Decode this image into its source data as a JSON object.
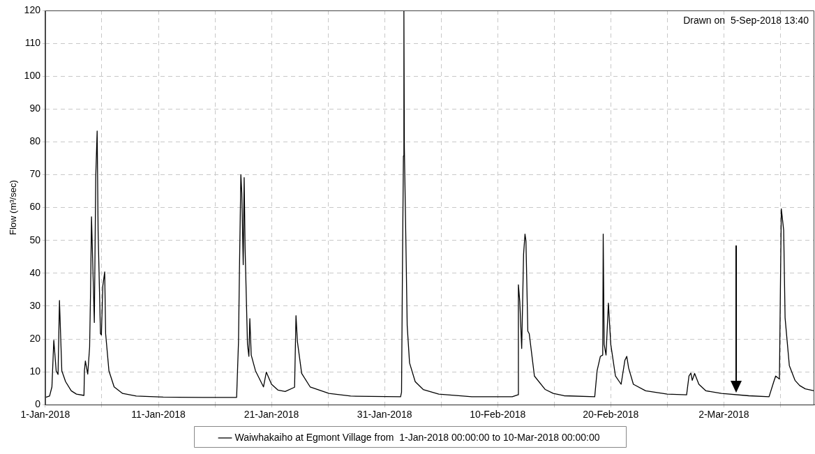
{
  "chart_data": {
    "type": "line",
    "ylabel": "Flow (m³/sec)",
    "annotations": [
      "Drawn on  5-Sep-2018 13:40"
    ],
    "x": [
      "2018-01-01T00:00",
      "2018-01-01T09:00",
      "2018-01-01T14:00",
      "2018-01-01T18:00",
      "2018-01-01T23:00",
      "2018-01-02T03:00",
      "2018-01-02T06:00",
      "2018-01-02T11:00",
      "2018-01-02T19:00",
      "2018-01-03T07:00",
      "2018-01-03T18:00",
      "2018-01-04T10:00",
      "2018-01-04T11:00",
      "2018-01-04T13:00",
      "2018-01-04T18:00",
      "2018-01-04T22:00",
      "2018-01-05T00:00",
      "2018-01-05T02:00",
      "2018-01-05T05:00",
      "2018-01-05T08:00",
      "2018-01-05T11:00",
      "2018-01-05T14:00",
      "2018-01-05T16:00",
      "2018-01-05T21:00",
      "2018-01-05T23:00",
      "2018-01-06T02:00",
      "2018-01-06T06:00",
      "2018-01-06T08:00",
      "2018-01-06T15:00",
      "2018-01-07T02:00",
      "2018-01-07T20:00",
      "2018-01-09T01:00",
      "2018-01-11T10:00",
      "2018-01-15T00:00",
      "2018-01-17T22:00",
      "2018-01-18T02:00",
      "2018-01-18T04:00",
      "2018-01-18T07:00",
      "2018-01-18T09:00",
      "2018-01-18T12:00",
      "2018-01-18T14:00",
      "2018-01-18T16:00",
      "2018-01-18T21:00",
      "2018-01-19T00:00",
      "2018-01-19T02:00",
      "2018-01-19T05:00",
      "2018-01-19T14:00",
      "2018-01-20T07:00",
      "2018-01-20T13:00",
      "2018-01-21T00:00",
      "2018-01-21T14:00",
      "2018-01-22T05:00",
      "2018-01-23T01:00",
      "2018-01-23T04:00",
      "2018-01-23T07:00",
      "2018-01-23T16:00",
      "2018-01-24T10:00",
      "2018-01-26T02:00",
      "2018-01-28T00:00",
      "2018-02-01T10:00",
      "2018-02-01T12:00",
      "2018-02-01T14:00",
      "2018-02-01T16:00",
      "2018-02-01T17:00",
      "2018-02-01T18:00",
      "2018-02-01T22:00",
      "2018-02-02T00:00",
      "2018-02-02T05:00",
      "2018-02-02T17:00",
      "2018-02-03T10:00",
      "2018-02-04T19:00",
      "2018-02-07T17:00",
      "2018-02-11T07:00",
      "2018-02-11T19:00",
      "2018-02-11T20:00",
      "2018-02-11T23:00",
      "2018-02-12T03:00",
      "2018-02-12T07:00",
      "2018-02-12T10:00",
      "2018-02-12T12:00",
      "2018-02-12T16:00",
      "2018-02-12T19:00",
      "2018-02-13T06:00",
      "2018-02-14T05:00",
      "2018-02-14T22:00",
      "2018-02-15T21:00",
      "2018-02-18T14:00",
      "2018-02-18T19:00",
      "2018-02-19T02:00",
      "2018-02-19T07:00",
      "2018-02-19T08:00",
      "2018-02-19T10:00",
      "2018-02-19T14:00",
      "2018-02-19T19:00",
      "2018-02-20T00:00",
      "2018-02-20T10:00",
      "2018-02-20T22:00",
      "2018-02-21T06:00",
      "2018-02-21T10:00",
      "2018-02-21T14:00",
      "2018-02-22T00:00",
      "2018-02-23T02:00",
      "2018-02-25T00:00",
      "2018-02-26T17:00",
      "2018-02-26T22:00",
      "2018-02-27T02:00",
      "2018-02-27T05:00",
      "2018-02-27T10:00",
      "2018-02-27T19:00",
      "2018-02-28T10:00",
      "2018-03-01T19:00",
      "2018-03-04T05:00",
      "2018-03-06T00:00",
      "2018-03-06T10:00",
      "2018-03-06T14:00",
      "2018-03-06T22:00",
      "2018-03-07T00:00",
      "2018-03-07T02:00",
      "2018-03-07T07:00",
      "2018-03-07T10:00",
      "2018-03-07T19:00",
      "2018-03-08T07:00",
      "2018-03-08T17:00",
      "2018-03-09T05:00",
      "2018-03-10T00:00"
    ],
    "series": [
      {
        "name": "Waiwhakaiho at Egmont Village from  1-Jan-2018 00:00:00 to 10-Mar-2018 00:00:00",
        "color": "#000000",
        "values": [
          2.2,
          2.6,
          5.4,
          19.6,
          10.3,
          9.2,
          31.7,
          10.3,
          7,
          4.2,
          3.2,
          2.8,
          10.3,
          13.3,
          9.3,
          17.5,
          34.5,
          57.2,
          41,
          25,
          69.3,
          83.3,
          53,
          21.6,
          21.2,
          36.1,
          40.4,
          21.6,
          10.3,
          5.4,
          3.4,
          2.6,
          2.3,
          2.2,
          2.2,
          19.2,
          41,
          70,
          64.4,
          42.6,
          69.1,
          47.5,
          18.4,
          14.7,
          26.2,
          15.1,
          10.3,
          5.4,
          9.9,
          6.2,
          4.4,
          4,
          5.3,
          27.1,
          19.2,
          9.5,
          5.4,
          3.4,
          2.6,
          2.4,
          3.8,
          42.6,
          75.7,
          120,
          78,
          42.6,
          24,
          12.7,
          7,
          4.6,
          3.2,
          2.4,
          2.4,
          3,
          36.5,
          31.3,
          17.1,
          45.8,
          51.9,
          49.9,
          22.4,
          21.6,
          8.7,
          4.6,
          3.4,
          2.7,
          2.4,
          10.3,
          14.7,
          15.1,
          51.9,
          18.4,
          15.1,
          30.9,
          18.4,
          8.7,
          6.2,
          13.5,
          14.7,
          11.1,
          6.2,
          4.2,
          3.2,
          3,
          8.7,
          9.6,
          7.4,
          9.5,
          6.2,
          4.2,
          3.4,
          2.7,
          2.4,
          7,
          8.7,
          7.8,
          34.5,
          59.6,
          53.1,
          26.4,
          11.9,
          7.4,
          5.8,
          4.8,
          4.2
        ]
      }
    ],
    "xlim": [
      "2018-01-01",
      "2018-03-10"
    ],
    "xticks": [
      {
        "value": "2018-01-01",
        "label": "1-Jan-2018"
      },
      {
        "value": "2018-01-06",
        "label": null
      },
      {
        "value": "2018-01-11",
        "label": "11-Jan-2018"
      },
      {
        "value": "2018-01-16",
        "label": null
      },
      {
        "value": "2018-01-21",
        "label": "21-Jan-2018"
      },
      {
        "value": "2018-01-26",
        "label": null
      },
      {
        "value": "2018-01-31",
        "label": "31-Jan-2018"
      },
      {
        "value": "2018-02-05",
        "label": null
      },
      {
        "value": "2018-02-10",
        "label": "10-Feb-2018"
      },
      {
        "value": "2018-02-15",
        "label": null
      },
      {
        "value": "2018-02-20",
        "label": "20-Feb-2018"
      },
      {
        "value": "2018-02-25",
        "label": null
      },
      {
        "value": "2018-03-02",
        "label": "2-Mar-2018"
      },
      {
        "value": "2018-03-07",
        "label": null
      }
    ],
    "ylim": [
      0,
      120
    ],
    "yticks": [
      0,
      10,
      20,
      30,
      40,
      50,
      60,
      70,
      80,
      90,
      100,
      110,
      120
    ],
    "grid": true,
    "legend": "bottom"
  }
}
